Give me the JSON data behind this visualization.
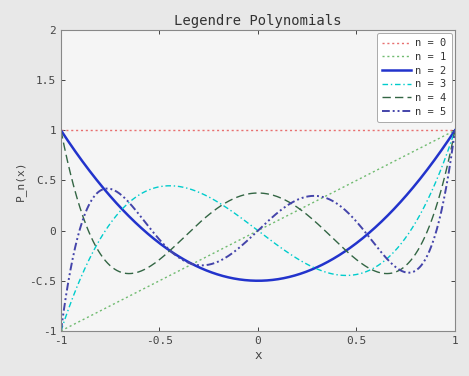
{
  "title": "Legendre Polynomials",
  "xlabel": "x",
  "ylabel": "P_n(x)",
  "xlim": [
    -1,
    1
  ],
  "ylim": [
    -1,
    2
  ],
  "yticks": [
    -1,
    -0.5,
    0,
    0.5,
    1,
    1.5,
    2
  ],
  "ytick_labels": [
    "-1",
    "-C.5",
    "0",
    "C.5",
    "1",
    "1.5",
    "2"
  ],
  "xticks": [
    -1,
    -0.5,
    0,
    0.5,
    1
  ],
  "xtick_labels": [
    "-1",
    "-0.5",
    "0",
    "0.5",
    "1"
  ],
  "background_color": "#f0f0f0",
  "axes_facecolor": "#f8f8f8",
  "lines": [
    {
      "n": 0,
      "label": "n = 0",
      "color": "#e87070",
      "linestyle": "dotted",
      "linewidth": 1.0
    },
    {
      "n": 1,
      "label": "n = 1",
      "color": "#70bb70",
      "linestyle": "dotted",
      "linewidth": 1.0
    },
    {
      "n": 2,
      "label": "n = 2",
      "color": "#2233cc",
      "linestyle": "solid",
      "linewidth": 1.8
    },
    {
      "n": 3,
      "label": "n = 3",
      "color": "#00cccc",
      "linestyle": "dashdot",
      "linewidth": 1.0
    },
    {
      "n": 4,
      "label": "n = 4",
      "color": "#336644",
      "linestyle": "dashed",
      "linewidth": 1.0
    },
    {
      "n": 5,
      "label": "n = 5",
      "color": "#4444aa",
      "linestyle": "dashdotdot",
      "linewidth": 1.4
    }
  ]
}
